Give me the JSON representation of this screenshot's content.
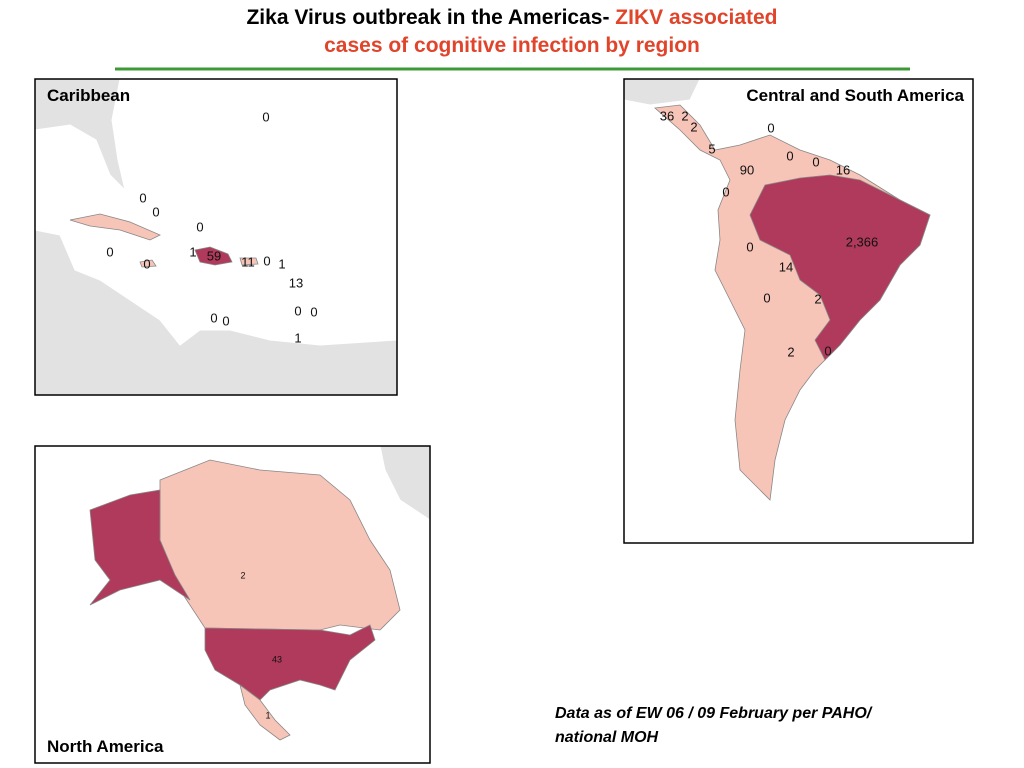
{
  "header": {
    "title_black": "Zika Virus outbreak in the Americas- ",
    "title_red_1": "ZIKV associated",
    "title_red_2": "cases of cognitive infection by region"
  },
  "panels": [
    {
      "name": "Caribbean",
      "labels": [
        0,
        0,
        0,
        0,
        0,
        0,
        1,
        59,
        11,
        0,
        1,
        13,
        0,
        0,
        0,
        0,
        1
      ]
    },
    {
      "name": "Central and South America",
      "labels": [
        36,
        2,
        2,
        0,
        5,
        90,
        0,
        0,
        16,
        0,
        {
          "value": 2366,
          "label": "2,366"
        },
        0,
        14,
        0,
        2,
        2,
        0
      ]
    },
    {
      "name": "North America",
      "labels": [
        2,
        43,
        1
      ]
    }
  ],
  "footnote": {
    "line1": "Data as of EW 06 / 09 February per PAHO/",
    "line2": "national MOH"
  }
}
